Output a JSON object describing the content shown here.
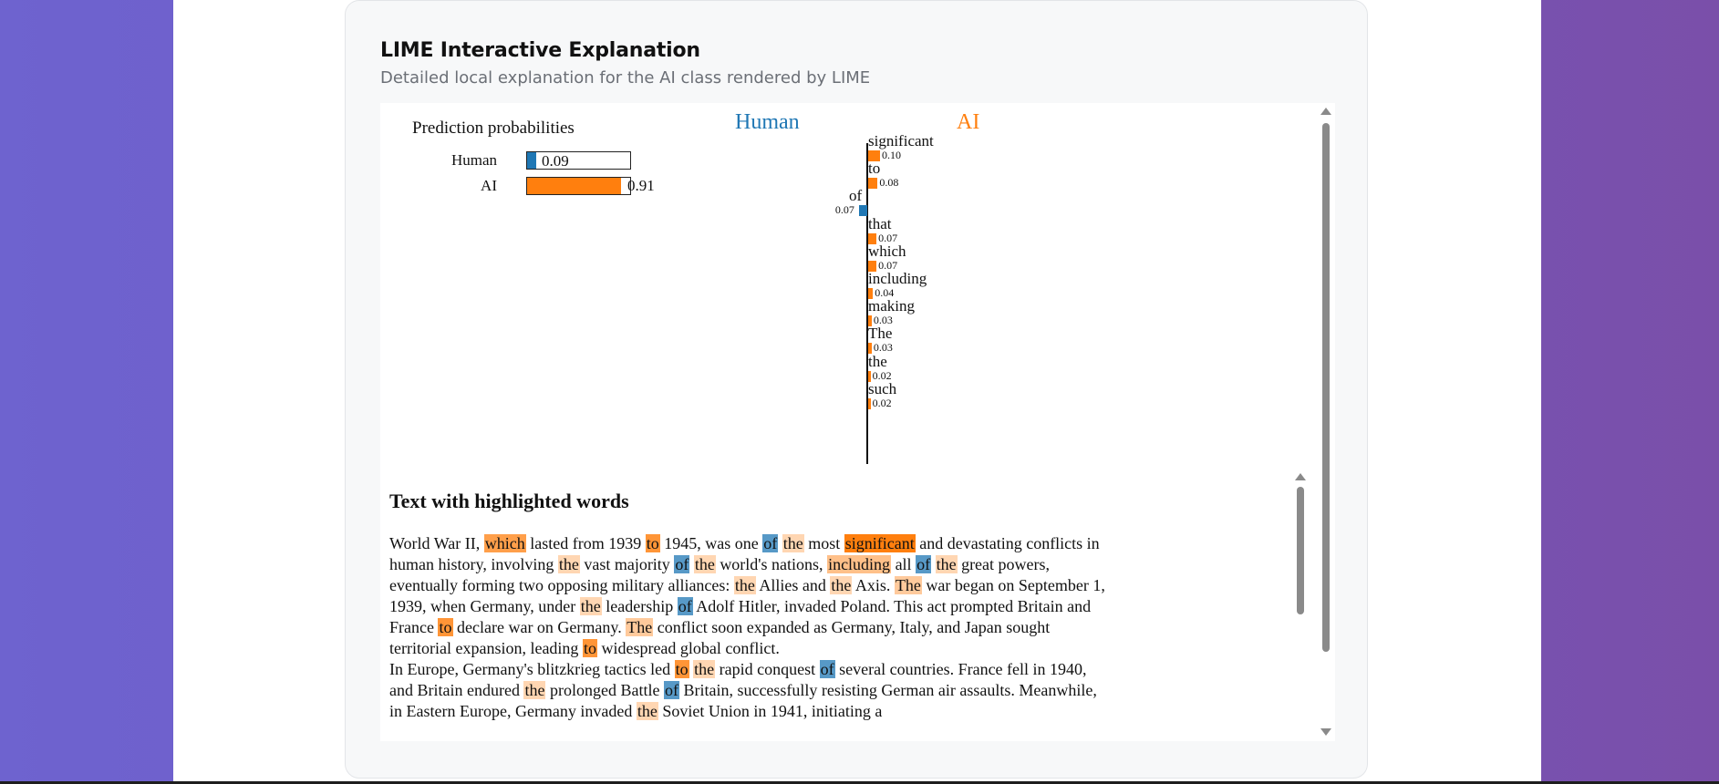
{
  "card": {
    "title": "LIME Interactive Explanation",
    "subtitle": "Detailed local explanation for the AI class rendered by LIME"
  },
  "prediction": {
    "title": "Prediction probabilities",
    "rows": [
      {
        "label": "Human",
        "value": "0.09",
        "fraction": 0.09,
        "color": "#1f77b4"
      },
      {
        "label": "AI",
        "value": "0.91",
        "fraction": 0.91,
        "color": "#ff7f0e"
      }
    ]
  },
  "classes": {
    "negative": {
      "label": "Human",
      "color": "#1f77b4"
    },
    "positive": {
      "label": "AI",
      "color": "#ff7f0e"
    }
  },
  "chart_data": {
    "type": "bar",
    "orientation": "horizontal",
    "categories": [
      "significant",
      "to",
      "of",
      "that",
      "which",
      "including",
      "making",
      "The",
      "the",
      "such"
    ],
    "values": [
      0.1,
      0.08,
      -0.07,
      0.07,
      0.07,
      0.04,
      0.03,
      0.03,
      0.02,
      0.02
    ],
    "value_labels": [
      "0.10",
      "0.08",
      "0.07",
      "0.07",
      "0.07",
      "0.04",
      "0.03",
      "0.03",
      "0.02",
      "0.02"
    ],
    "series": [
      {
        "name": "Human",
        "color": "#1f77b4"
      },
      {
        "name": "AI",
        "color": "#ff7f0e"
      }
    ]
  },
  "text_section": {
    "title": "Text with highlighted words",
    "paragraphs": [
      [
        {
          "t": "World War II, "
        },
        {
          "t": "which",
          "w": 0.07,
          "c": "ai"
        },
        {
          "t": " lasted from 1939 "
        },
        {
          "t": "to",
          "w": 0.08,
          "c": "ai"
        },
        {
          "t": " 1945, was one "
        },
        {
          "t": "of",
          "w": 0.07,
          "c": "human"
        },
        {
          "t": " "
        },
        {
          "t": "the",
          "w": 0.02,
          "c": "ai"
        },
        {
          "t": " most "
        },
        {
          "t": "significant",
          "w": 0.1,
          "c": "ai"
        },
        {
          "t": " and devastating conflicts in human history, involving "
        },
        {
          "t": "the",
          "w": 0.02,
          "c": "ai"
        },
        {
          "t": " vast majority "
        },
        {
          "t": "of",
          "w": 0.07,
          "c": "human"
        },
        {
          "t": " "
        },
        {
          "t": "the",
          "w": 0.02,
          "c": "ai"
        },
        {
          "t": " world's nations, "
        },
        {
          "t": "including",
          "w": 0.04,
          "c": "ai"
        },
        {
          "t": " all "
        },
        {
          "t": "of",
          "w": 0.07,
          "c": "human"
        },
        {
          "t": " "
        },
        {
          "t": "the",
          "w": 0.02,
          "c": "ai"
        },
        {
          "t": " great powers, eventually forming two opposing military alliances: "
        },
        {
          "t": "the",
          "w": 0.02,
          "c": "ai"
        },
        {
          "t": " Allies and "
        },
        {
          "t": "the",
          "w": 0.02,
          "c": "ai"
        },
        {
          "t": " Axis. "
        },
        {
          "t": "The",
          "w": 0.03,
          "c": "ai"
        },
        {
          "t": " war began on September 1, 1939, when Germany, under "
        },
        {
          "t": "the",
          "w": 0.02,
          "c": "ai"
        },
        {
          "t": " leadership "
        },
        {
          "t": "of",
          "w": 0.07,
          "c": "human"
        },
        {
          "t": " Adolf Hitler, invaded Poland. This act prompted Britain and France "
        },
        {
          "t": "to",
          "w": 0.08,
          "c": "ai"
        },
        {
          "t": " declare war on Germany. "
        },
        {
          "t": "The",
          "w": 0.03,
          "c": "ai"
        },
        {
          "t": " conflict soon expanded as Germany, Italy, and Japan sought territorial expansion, leading "
        },
        {
          "t": "to",
          "w": 0.08,
          "c": "ai"
        },
        {
          "t": " widespread global conflict."
        }
      ],
      [
        {
          "t": "In Europe, Germany's blitzkrieg tactics led "
        },
        {
          "t": "to",
          "w": 0.08,
          "c": "ai"
        },
        {
          "t": " "
        },
        {
          "t": "the",
          "w": 0.02,
          "c": "ai"
        },
        {
          "t": " rapid conquest "
        },
        {
          "t": "of",
          "w": 0.07,
          "c": "human"
        },
        {
          "t": " several countries. France fell in 1940, and Britain endured "
        },
        {
          "t": "the",
          "w": 0.02,
          "c": "ai"
        },
        {
          "t": " prolonged Battle "
        },
        {
          "t": "of",
          "w": 0.07,
          "c": "human"
        },
        {
          "t": " Britain, successfully resisting German air assaults. Meanwhile, in Eastern Europe, Germany invaded "
        },
        {
          "t": "the",
          "w": 0.02,
          "c": "ai"
        },
        {
          "t": " Soviet Union in 1941, initiating a"
        }
      ]
    ]
  }
}
